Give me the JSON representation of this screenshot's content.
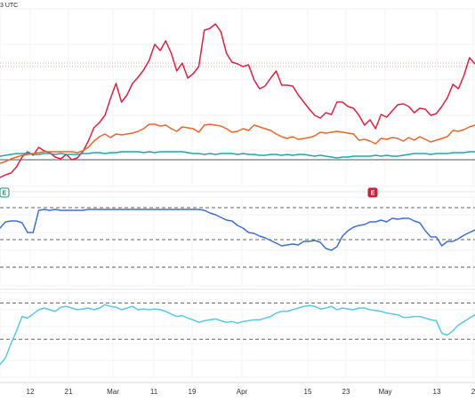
{
  "header": {
    "timestamp_fragment": "3 UTC"
  },
  "chart_data": {
    "type": "line",
    "panels": [
      {
        "id": "price",
        "grid": true,
        "reference_levels": [
          {
            "value": 21.5,
            "style": "dotted",
            "color": "#f2a0a0"
          },
          {
            "value": 21.9,
            "style": "dotted",
            "color": "#f2a0a0"
          },
          {
            "value": 11.0,
            "style": "solid",
            "color": "#555555"
          }
        ],
        "ylim": [
          8,
          28
        ],
        "series": [
          {
            "color": "#e0213f",
            "values": [
              9.0,
              9.3,
              9.5,
              10.2,
              11.3,
              11.9,
              11.5,
              12.4,
              12.0,
              11.8,
              11.3,
              11.1,
              11.6,
              11.0,
              11.2,
              11.9,
              13.1,
              14.6,
              15.2,
              16.0,
              17.9,
              19.6,
              17.5,
              18.3,
              19.6,
              20.3,
              21.1,
              22.2,
              24.0,
              23.3,
              24.4,
              23.0,
              21.0,
              21.9,
              20.2,
              20.7,
              21.5,
              25.6,
              25.8,
              26.3,
              25.4,
              23.0,
              22.0,
              21.8,
              21.5,
              21.7,
              20.0,
              19.0,
              19.3,
              20.2,
              21.0,
              19.4,
              19.4,
              19.3,
              18.3,
              17.5,
              16.7,
              16.0,
              15.7,
              16.3,
              16.1,
              17.5,
              17.5,
              17.0,
              16.8,
              16.0,
              14.9,
              15.5,
              14.5,
              16.1,
              15.8,
              16.5,
              17.2,
              17.3,
              17.0,
              16.3,
              16.8,
              16.7,
              16.0,
              16.2,
              17.0,
              18.0,
              19.5,
              19.0,
              20.5,
              22.5,
              21.8
            ]
          },
          {
            "color": "#f0642c",
            "values": [
              10.6,
              10.8,
              11.1,
              11.3,
              11.5,
              11.6,
              11.7,
              11.8,
              11.9,
              11.9,
              11.9,
              11.9,
              11.9,
              11.9,
              11.8,
              12.0,
              12.4,
              13.1,
              13.6,
              13.9,
              13.5,
              13.9,
              13.8,
              13.9,
              14.0,
              14.2,
              14.5,
              15.0,
              15.0,
              14.8,
              14.9,
              14.5,
              14.2,
              14.7,
              14.6,
              14.5,
              14.1,
              14.9,
              15.0,
              14.9,
              14.8,
              14.5,
              14.1,
              14.2,
              14.5,
              14.3,
              14.9,
              14.7,
              14.5,
              14.3,
              13.9,
              13.6,
              13.4,
              13.6,
              13.3,
              13.4,
              13.5,
              13.7,
              14.1,
              14.0,
              14.1,
              14.2,
              14.1,
              14.0,
              13.9,
              13.2,
              13.3,
              13.1,
              12.8,
              13.4,
              13.3,
              13.5,
              13.4,
              13.1,
              13.5,
              13.2,
              13.6,
              13.3,
              13.0,
              13.2,
              13.4,
              13.6,
              14.3,
              14.2,
              14.4,
              14.7,
              14.9
            ]
          },
          {
            "color": "#19a8b3",
            "values": [
              11.4,
              11.5,
              11.6,
              11.7,
              11.7,
              11.7,
              11.6,
              11.6,
              11.7,
              11.7,
              11.6,
              11.7,
              11.6,
              11.6,
              11.6,
              11.7,
              11.7,
              11.8,
              11.8,
              11.7,
              11.8,
              11.8,
              11.9,
              11.9,
              11.9,
              11.9,
              11.8,
              11.9,
              11.8,
              11.9,
              11.9,
              11.9,
              11.9,
              11.9,
              11.8,
              11.7,
              11.7,
              11.6,
              11.7,
              11.6,
              11.7,
              11.7,
              11.7,
              11.6,
              11.7,
              11.6,
              11.6,
              11.5,
              11.5,
              11.6,
              11.6,
              11.5,
              11.6,
              11.5,
              11.6,
              11.6,
              11.5,
              11.4,
              11.5,
              11.4,
              11.3,
              11.2,
              11.3,
              11.3,
              11.4,
              11.4,
              11.4,
              11.4,
              11.5,
              11.4,
              11.5,
              11.4,
              11.4,
              11.5,
              11.6,
              11.7,
              11.7,
              11.7,
              11.6,
              11.7,
              11.7,
              11.7,
              11.8,
              11.8,
              11.8,
              11.9,
              11.9
            ]
          }
        ]
      },
      {
        "id": "oscillator-upper",
        "grid": true,
        "reference_levels": [
          {
            "value": 88,
            "style": "dashed",
            "color": "#666666"
          },
          {
            "value": 52,
            "style": "dashed",
            "color": "#666666"
          },
          {
            "value": 21,
            "style": "dashed",
            "color": "#666666"
          }
        ],
        "ylim": [
          0,
          100
        ],
        "series": [
          {
            "color": "#3d6fd8",
            "values": [
              65,
              72,
              73,
              73,
              71,
              60,
              60,
              85,
              86,
              85,
              86,
              85,
              85,
              85,
              85,
              85,
              86,
              86,
              86,
              86,
              86,
              86,
              86,
              86,
              86,
              86,
              86,
              86,
              86,
              86,
              86,
              86,
              86,
              86,
              86,
              86,
              86,
              85,
              82,
              80,
              77,
              74,
              73,
              68,
              65,
              60,
              59,
              56,
              54,
              51,
              48,
              45,
              46,
              47,
              46,
              50,
              50,
              51,
              49,
              42,
              40,
              44,
              56,
              62,
              66,
              68,
              69,
              72,
              72,
              74,
              72,
              76,
              75,
              76,
              76,
              73,
              71,
              62,
              55,
              55,
              45,
              50,
              50,
              53,
              57,
              60,
              63
            ]
          }
        ]
      },
      {
        "id": "oscillator-lower",
        "grid": true,
        "reference_levels": [
          {
            "value": 88,
            "style": "dashed",
            "color": "#666666"
          },
          {
            "value": 45,
            "style": "dashed",
            "color": "#666666"
          }
        ],
        "ylim": [
          0,
          100
        ],
        "series": [
          {
            "color": "#5bc8e6",
            "values": [
              15,
              23,
              40,
              55,
              72,
              70,
              75,
              80,
              82,
              80,
              78,
              83,
              84,
              82,
              80,
              81,
              82,
              80,
              82,
              86,
              84,
              83,
              80,
              82,
              84,
              80,
              81,
              80,
              81,
              80,
              78,
              75,
              72,
              73,
              70,
              68,
              65,
              67,
              68,
              69,
              67,
              65,
              66,
              64,
              66,
              67,
              68,
              68,
              70,
              72,
              76,
              78,
              78,
              80,
              82,
              84,
              85,
              84,
              81,
              82,
              84,
              80,
              82,
              81,
              80,
              82,
              82,
              80,
              79,
              78,
              76,
              75,
              74,
              71,
              71,
              72,
              72,
              70,
              68,
              67,
              52,
              50,
              55,
              62,
              66,
              70,
              74
            ]
          }
        ]
      }
    ],
    "x_tick_labels": [
      "12",
      "21",
      "Mar",
      "11",
      "19",
      "Apr",
      "15",
      "23",
      "May",
      "13",
      "2"
    ],
    "event_markers": [
      {
        "label": "E",
        "border": "#1a8f63",
        "fill": "#ffffff",
        "text": "#1a8f63"
      },
      {
        "label": "E",
        "border": "#c4273d",
        "fill": "#c4273d",
        "text": "#ffffff"
      }
    ]
  }
}
